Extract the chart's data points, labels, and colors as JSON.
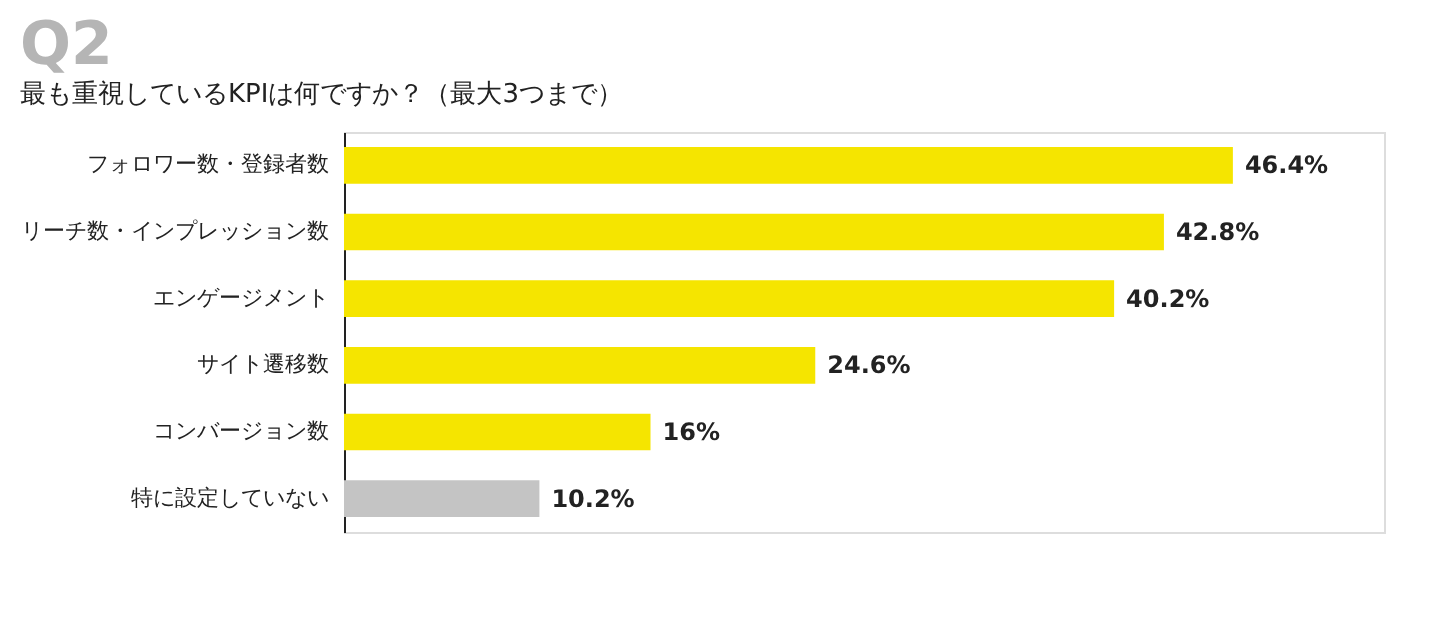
{
  "chart_data": {
    "type": "bar",
    "orientation": "horizontal",
    "title": "Q2",
    "subtitle": "最も重視しているKPIは何ですか？（最大3つまで）",
    "categories": [
      "フォロワー数・登録者数",
      "リーチ数・インプレッション数",
      "エンゲージメント",
      "サイト遷移数",
      "コンバージョン数",
      "特に設定していない"
    ],
    "values": [
      46.4,
      42.8,
      40.2,
      24.6,
      16,
      10.2
    ],
    "colors": [
      "#f5e500",
      "#f5e500",
      "#f5e500",
      "#f5e500",
      "#f5e500",
      "#c4c4c4"
    ],
    "value_labels": [
      "46.4%",
      "42.8%",
      "40.2%",
      "24.6%",
      "16%",
      "10.2%"
    ],
    "tick_labels": "y"
  }
}
